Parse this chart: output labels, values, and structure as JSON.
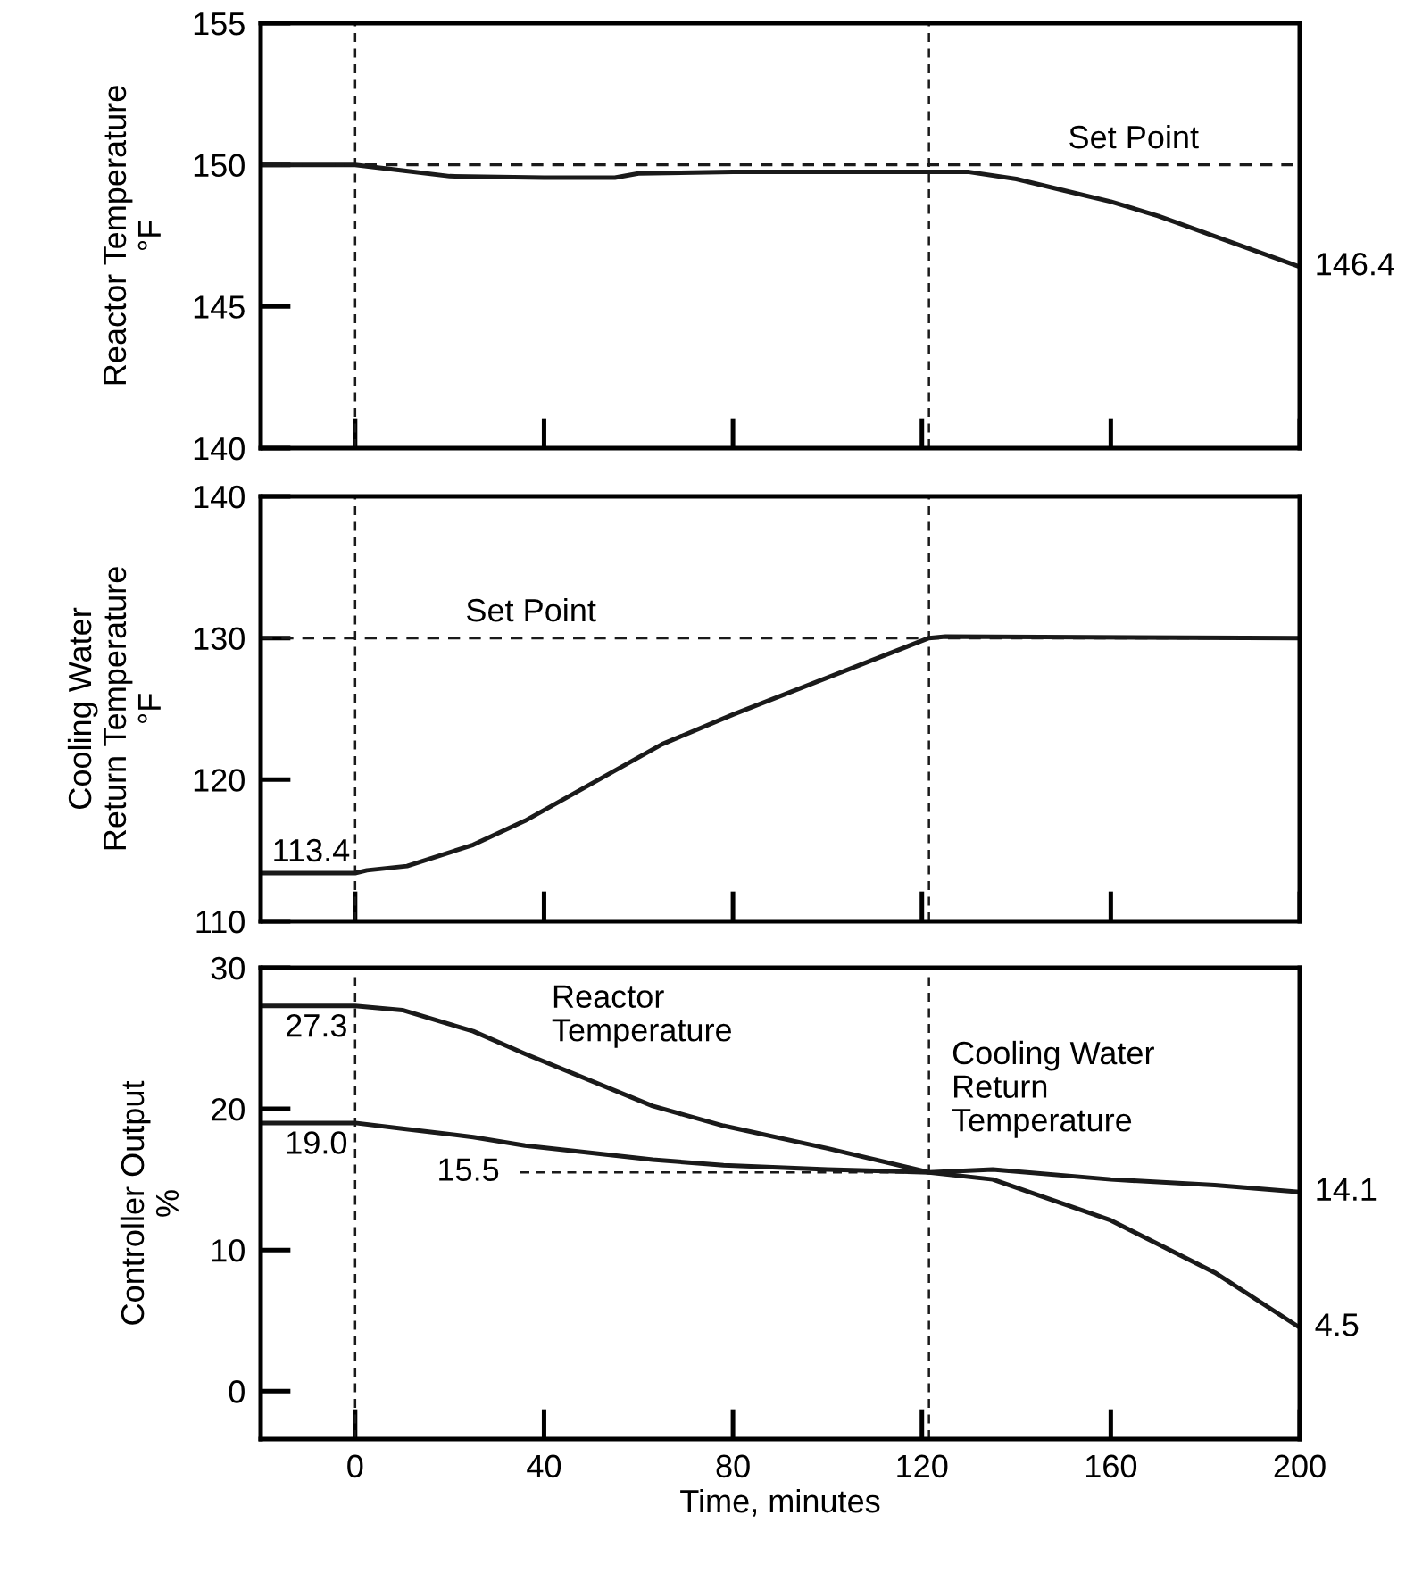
{
  "chart_data": [
    {
      "type": "line",
      "ylabel": "Reactor Temperature\n°F",
      "x": [
        -20,
        0,
        10,
        20,
        40,
        55,
        60,
        80,
        100,
        130,
        140,
        150,
        160,
        170,
        180,
        190,
        200
      ],
      "series": [
        {
          "color": "#1a1a1a",
          "values": [
            150,
            150,
            149.8,
            149.6,
            149.55,
            149.55,
            149.7,
            149.75,
            149.75,
            149.75,
            149.5,
            149.1,
            148.7,
            148.2,
            147.6,
            147.0,
            146.4
          ],
          "value_labels": [
            null,
            null,
            null,
            null,
            null,
            null,
            null,
            null,
            null,
            null,
            null,
            null,
            null,
            null,
            null,
            null,
            "146.4"
          ]
        }
      ],
      "xlim": [
        -20,
        200
      ],
      "xticks": [
        0,
        40,
        80,
        120,
        160,
        200
      ],
      "ylim": [
        140,
        155
      ],
      "yticks": [
        140,
        145,
        150,
        155
      ],
      "tick_labels": "y",
      "grid": false,
      "marker": "none",
      "line_style": "solid",
      "ref_lines": [
        {
          "axis": "y",
          "value": 150,
          "label": "Set Point",
          "line_style": "dashed"
        },
        {
          "axis": "x",
          "value": 0,
          "line_style": "dashed"
        },
        {
          "axis": "x",
          "value": 121.5,
          "line_style": "dashed"
        }
      ]
    },
    {
      "type": "line",
      "ylabel": "Cooling Water\nReturn Temperature\n°F",
      "x": [
        -20,
        0,
        2.5,
        11,
        25,
        36,
        65,
        80,
        121.5,
        125,
        200
      ],
      "series": [
        {
          "color": "#1a1a1a",
          "values": [
            113.4,
            113.4,
            113.6,
            113.9,
            115.4,
            117.1,
            122.5,
            124.6,
            130,
            130.1,
            130
          ],
          "value_labels": [
            null,
            "113.4",
            null,
            null,
            null,
            null,
            null,
            null,
            null,
            null,
            null
          ]
        }
      ],
      "xlim": [
        -20,
        200
      ],
      "xticks": [
        0,
        40,
        80,
        120,
        160,
        200
      ],
      "ylim": [
        110,
        140
      ],
      "yticks": [
        110,
        120,
        130,
        140
      ],
      "tick_labels": "y",
      "grid": false,
      "marker": "none",
      "line_style": "solid",
      "ref_lines": [
        {
          "axis": "y",
          "value": 130,
          "label": "Set Point",
          "line_style": "dashed"
        },
        {
          "axis": "x",
          "value": 0,
          "line_style": "dashed"
        },
        {
          "axis": "x",
          "value": 121.5,
          "line_style": "dashed"
        }
      ]
    },
    {
      "type": "line",
      "xlabel": "Time, minutes",
      "ylabel": "Controller Output\n%",
      "x": [
        -20,
        0,
        10,
        25,
        36,
        63,
        78,
        100,
        121.5,
        135,
        160,
        182,
        200
      ],
      "series": [
        {
          "name": "Reactor Temperature",
          "color": "#1a1a1a",
          "values": [
            27.3,
            27.3,
            27.0,
            25.5,
            23.9,
            20.2,
            18.8,
            17.2,
            15.5,
            15.0,
            12.1,
            8.4,
            4.5
          ],
          "value_labels": [
            null,
            "27.3",
            null,
            null,
            null,
            null,
            null,
            null,
            null,
            null,
            null,
            null,
            "4.5"
          ]
        },
        {
          "name": "Cooling Water Return Temperature",
          "color": "#1a1a1a",
          "values": [
            19.0,
            19.0,
            18.6,
            18.0,
            17.4,
            16.4,
            16.0,
            15.7,
            15.5,
            15.7,
            15.0,
            14.6,
            14.1
          ],
          "value_labels": [
            null,
            "19.0",
            null,
            null,
            null,
            null,
            null,
            null,
            null,
            null,
            null,
            null,
            "14.1"
          ]
        }
      ],
      "xlim": [
        -20,
        200
      ],
      "xticks": [
        0,
        40,
        80,
        120,
        160,
        200
      ],
      "ylim": [
        -3.4,
        30
      ],
      "yticks": [
        0,
        10,
        20,
        30
      ],
      "grid": false,
      "marker": "none",
      "line_style": "solid",
      "ref_lines": [
        {
          "axis": "y",
          "value": 15.5,
          "label": "15.5",
          "line_style": "dashed"
        },
        {
          "axis": "x",
          "value": 0,
          "line_style": "dashed"
        },
        {
          "axis": "x",
          "value": 121.5,
          "line_style": "dashed"
        }
      ]
    }
  ]
}
